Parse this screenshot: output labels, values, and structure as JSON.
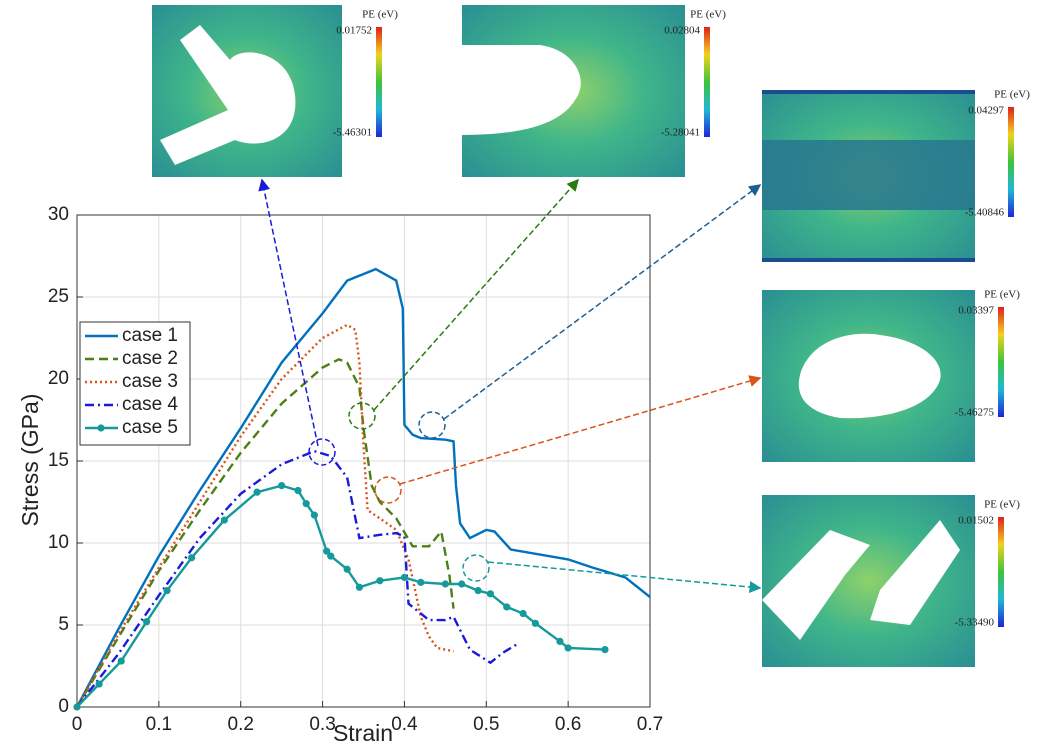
{
  "chart_data": {
    "type": "line",
    "x_label": "Strain",
    "y_label": "Stress (GPa)",
    "xlim": [
      0,
      0.7
    ],
    "xticks": [
      0,
      0.1,
      0.2,
      0.3,
      0.4,
      0.5,
      0.6,
      0.7
    ],
    "ylim": [
      0,
      30
    ],
    "yticks": [
      0,
      5,
      10,
      15,
      20,
      25,
      30
    ],
    "grid": true,
    "legend": "left",
    "series": [
      {
        "name": "case 1",
        "color": "#0072bd",
        "style": "solid",
        "x": [
          0,
          0.05,
          0.1,
          0.15,
          0.2,
          0.25,
          0.3,
          0.33,
          0.365,
          0.39,
          0.398,
          0.4,
          0.41,
          0.42,
          0.45,
          0.46,
          0.463,
          0.468,
          0.48,
          0.5,
          0.51,
          0.53,
          0.6,
          0.63,
          0.67,
          0.7
        ],
        "values": [
          0,
          4.7,
          9.2,
          13.2,
          17,
          21,
          24,
          26,
          26.7,
          26,
          24.3,
          17.2,
          16.6,
          16.4,
          16.3,
          16.2,
          13.5,
          11.2,
          10.3,
          10.8,
          10.7,
          9.6,
          9,
          8.5,
          7.9,
          6.7
        ]
      },
      {
        "name": "case 2",
        "color": "#4d7f17",
        "style": "dashed",
        "x": [
          0,
          0.05,
          0.1,
          0.15,
          0.2,
          0.25,
          0.3,
          0.32,
          0.33,
          0.345,
          0.35,
          0.36,
          0.37,
          0.39,
          0.41,
          0.43,
          0.445,
          0.455,
          0.46
        ],
        "values": [
          0,
          4.2,
          8.3,
          12,
          15.5,
          18.5,
          20.7,
          21.2,
          21,
          19.5,
          17,
          13.5,
          12.5,
          11.5,
          9.8,
          9.8,
          10.7,
          8,
          6
        ]
      },
      {
        "name": "case 3",
        "color": "#d95319",
        "style": "dotted",
        "x": [
          0,
          0.05,
          0.1,
          0.15,
          0.2,
          0.25,
          0.3,
          0.33,
          0.34,
          0.345,
          0.35,
          0.355,
          0.37,
          0.39,
          0.405,
          0.42,
          0.43,
          0.44,
          0.46
        ],
        "values": [
          0,
          4.4,
          8.5,
          12.5,
          16.5,
          20,
          22.5,
          23.3,
          23,
          21,
          16,
          12,
          11.5,
          10.8,
          9,
          5.5,
          4.3,
          3.6,
          3.4
        ]
      },
      {
        "name": "case 4",
        "color": "#1a1adb",
        "style": "dashdot",
        "x": [
          0,
          0.05,
          0.1,
          0.15,
          0.2,
          0.25,
          0.29,
          0.31,
          0.33,
          0.345,
          0.37,
          0.39,
          0.4,
          0.405,
          0.43,
          0.45,
          0.46,
          0.48,
          0.505,
          0.52,
          0.54
        ],
        "values": [
          0,
          3.2,
          6.8,
          10.3,
          13,
          14.8,
          15.6,
          15.3,
          14,
          10.3,
          10.5,
          10.6,
          10.4,
          6.3,
          5.3,
          5.3,
          5.5,
          3.5,
          2.7,
          3.3,
          3.9
        ]
      },
      {
        "name": "case 5",
        "color": "#16999a",
        "style": "solid",
        "markers": true,
        "x": [
          0,
          0.027,
          0.054,
          0.085,
          0.11,
          0.14,
          0.18,
          0.22,
          0.25,
          0.27,
          0.28,
          0.29,
          0.305,
          0.31,
          0.33,
          0.345,
          0.37,
          0.4,
          0.42,
          0.45,
          0.47,
          0.49,
          0.505,
          0.525,
          0.545,
          0.56,
          0.59,
          0.6,
          0.645
        ],
        "values": [
          0,
          1.4,
          2.8,
          5.2,
          7.1,
          9.1,
          11.4,
          13.1,
          13.5,
          13.2,
          12.4,
          11.7,
          9.5,
          9.2,
          8.4,
          7.3,
          7.7,
          7.9,
          7.6,
          7.5,
          7.5,
          7.1,
          6.9,
          6.1,
          5.7,
          5.1,
          4,
          3.6,
          3.5
        ]
      }
    ]
  },
  "insets": [
    {
      "title": "PE (eV)",
      "max": "0.01752",
      "min": "-5.46301"
    },
    {
      "title": "PE (eV)",
      "max": "0.02804",
      "min": "-5.28041"
    },
    {
      "title": "PE (eV)",
      "max": "0.04297",
      "min": "-5.40846"
    },
    {
      "title": "PE (eV)",
      "max": "0.03397",
      "min": "-5.46275"
    },
    {
      "title": "PE (eV)",
      "max": "0.01502",
      "min": "-5.33490"
    }
  ]
}
